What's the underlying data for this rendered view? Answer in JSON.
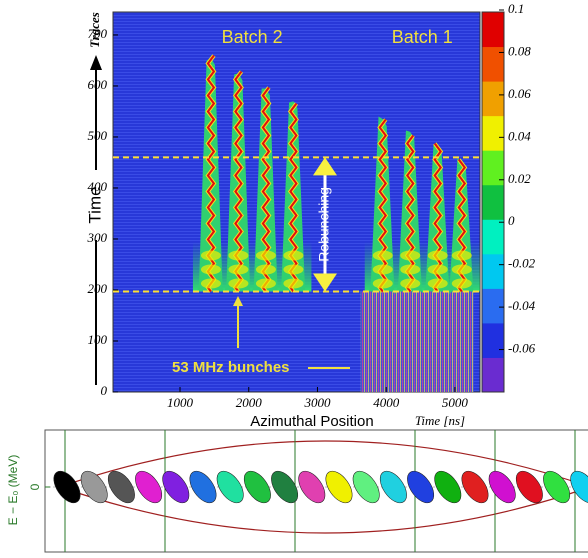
{
  "chart_data": [
    {
      "type": "heatmap",
      "ylabel": "Traces",
      "xlabel": "Azimuthal Position",
      "x_unit_label": "Time [ns]",
      "side_label": "Time",
      "xlim": [
        25,
        5365
      ],
      "ylim": [
        0,
        745
      ],
      "xticks": [
        1000,
        2000,
        3000,
        4000,
        5000
      ],
      "yticks": [
        0,
        100,
        200,
        300,
        400,
        500,
        600,
        700
      ],
      "colorbar": {
        "lim": [
          -0.08,
          0.1
        ],
        "ticks": [
          0.1,
          0.08,
          0.06,
          0.04,
          0.02,
          0,
          -0.02,
          -0.04,
          -0.06
        ],
        "colors": [
          "#6a2cd0",
          "#2030e0",
          "#2a6cf0",
          "#00c8f0",
          "#00f0c0",
          "#10c040",
          "#60f020",
          "#f0f000",
          "#f0a000",
          "#f05000",
          "#e00000"
        ]
      },
      "dashed_lines": [
        460,
        197
      ],
      "dashed_color": "#ffe033",
      "series": [
        {
          "name": "Batch 2",
          "x": [
            1450,
            1850,
            2250,
            2650
          ],
          "values": [
            655,
            625,
            595,
            570
          ]
        },
        {
          "name": "Batch 1",
          "x": [
            3950,
            4350,
            4750,
            5100
          ],
          "values": [
            535,
            510,
            480,
            455
          ]
        }
      ],
      "annotations": [
        "Rebunching",
        "53 MHz bunches"
      ]
    },
    {
      "type": "phase-space",
      "ylabel": "E − E₀ (MeV)",
      "yticks": [
        0
      ],
      "colors": [
        "#000000",
        "#999999",
        "#555555",
        "#e020d0",
        "#8020e0",
        "#2070e0",
        "#20e0a0",
        "#20c040",
        "#208040",
        "#e040b0",
        "#f0f000",
        "#60f080",
        "#20d0e0",
        "#2040e0",
        "#10b010",
        "#e02020",
        "#d010d0",
        "#e01020",
        "#30e040",
        "#10d0f0"
      ]
    }
  ]
}
